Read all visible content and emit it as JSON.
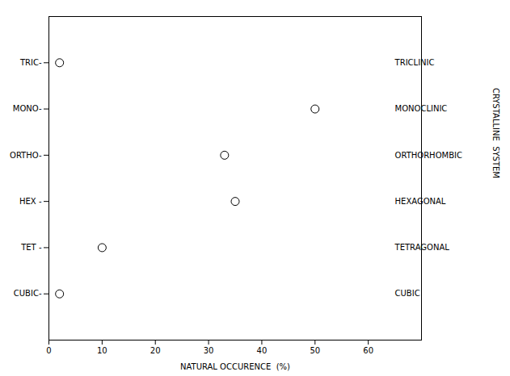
{
  "chart_data": {
    "type": "scatter",
    "x": [
      2,
      50,
      33,
      35,
      10,
      2
    ],
    "y": [
      6,
      5,
      4,
      3,
      2,
      1
    ],
    "xlabel": "NATURAL OCCURENCE  (%)",
    "ylabel": "CRYSTALLINE  SYSTEM",
    "xlim": [
      0,
      70
    ],
    "ylim": [
      0.0,
      7.0
    ],
    "xticks": [
      0,
      10,
      20,
      30,
      40,
      50,
      60
    ],
    "yticks": [
      {
        "value": 1,
        "label": "CUBIC-"
      },
      {
        "value": 2,
        "label": "TET -"
      },
      {
        "value": 3,
        "label": "HEX -"
      },
      {
        "value": 4,
        "label": "ORTHO-"
      },
      {
        "value": 5,
        "label": "MONO-"
      },
      {
        "value": 6,
        "label": "TRIC-"
      }
    ],
    "annotations": [
      {
        "text": "TRICLINIC",
        "x": 65,
        "y": 6
      },
      {
        "text": "MONOCLINIC",
        "x": 65,
        "y": 5
      },
      {
        "text": "ORTHORHOMBIC",
        "x": 65,
        "y": 4
      },
      {
        "text": "HEXAGONAL",
        "x": 65,
        "y": 3
      },
      {
        "text": "TETRAGONAL",
        "x": 65,
        "y": 2
      },
      {
        "text": "CUBIC",
        "x": 65,
        "y": 1
      }
    ],
    "color": "black",
    "marker": "o",
    "grid": false
  }
}
